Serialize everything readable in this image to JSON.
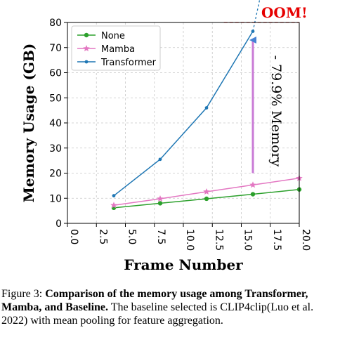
{
  "chart_data": {
    "type": "line",
    "xlabel": "Frame Number",
    "ylabel": "Memory Usage (GB)",
    "xlim": [
      0.0,
      20.0
    ],
    "ylim": [
      0,
      80
    ],
    "x_ticks": [
      "0.0",
      "2.5",
      "5.0",
      "7.5",
      "10.0",
      "12.5",
      "15.0",
      "17.5",
      "20.0"
    ],
    "y_ticks": [
      "0",
      "10",
      "20",
      "30",
      "40",
      "50",
      "60",
      "70",
      "80"
    ],
    "grid": true,
    "legend_position": "top-left",
    "series": [
      {
        "name": "None",
        "color": "#2ca02c",
        "marker": "circle",
        "x": [
          4,
          8,
          12,
          16,
          20
        ],
        "y": [
          6.2,
          8.0,
          9.8,
          11.6,
          13.5
        ]
      },
      {
        "name": "Mamba",
        "color": "#e377c2",
        "marker": "star",
        "x": [
          4,
          8,
          12,
          16,
          20
        ],
        "y": [
          7.2,
          9.8,
          12.6,
          15.3,
          18.0
        ]
      },
      {
        "name": "Transformer",
        "color": "#1f77b4",
        "marker": "point",
        "x": [
          4,
          8,
          12,
          16
        ],
        "y": [
          11.0,
          25.5,
          46.0,
          76.5
        ]
      }
    ],
    "annotations": {
      "oom_label": "OOM!",
      "oom_line_y": 80,
      "oom_line_x": [
        13.5,
        20.0
      ],
      "extrapolation_x": [
        16,
        17.0
      ],
      "extrapolation_y": [
        76.5,
        98
      ],
      "arrow_x": 16,
      "arrow_y": [
        20,
        73
      ],
      "reduction_label": "- 79.9% Memory"
    }
  },
  "caption": {
    "figure_label": "Figure 3: ",
    "bold_text": "Comparison of the memory usage among Transformer, Mamba, and Baseline.",
    "rest_text": " The baseline selected is CLIP4clip(Luo et al. 2022) with mean pooling for feature aggregation."
  }
}
